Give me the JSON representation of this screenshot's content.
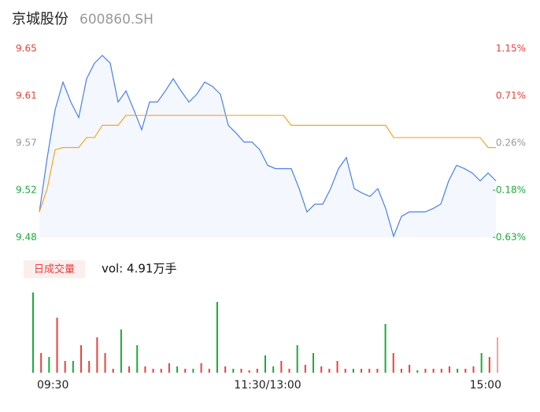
{
  "chart_data": {
    "type": "line",
    "title": "京城股份",
    "subtitle": "600860.SH",
    "xlim": [
      0,
      58
    ],
    "xticks": [
      {
        "value": 0,
        "label": "09:30"
      },
      {
        "value": 29,
        "label": "11:30/13:00"
      },
      {
        "value": 58,
        "label": "15:00"
      }
    ],
    "ylim": [
      9.48,
      9.65
    ],
    "yticks": [
      {
        "value": 9.65,
        "label": "9.65"
      },
      {
        "value": 9.6075,
        "label": "9.61"
      },
      {
        "value": 9.565,
        "label": "9.57"
      },
      {
        "value": 9.5225,
        "label": "9.52"
      },
      9.48
    ],
    "ytick_colors": [
      "#e8413b",
      "#e8413b",
      "#999999",
      "#1aaa3a",
      "#1aaa3a"
    ],
    "y2lim": [
      -0.63,
      1.15
    ],
    "y2ticks": [
      {
        "value": 1.15,
        "label": "1.15%"
      },
      {
        "value": 0.705,
        "label": "0.71%"
      },
      {
        "value": 0.26,
        "label": "0.26%"
      },
      {
        "value": -0.185,
        "label": "-0.18%"
      },
      {
        "value": -0.63,
        "label": "-0.63%"
      }
    ],
    "series": [
      {
        "color": "#4a80e8",
        "values": [
          9.503,
          9.552,
          9.595,
          9.62,
          9.602,
          9.588,
          9.623,
          9.637,
          9.644,
          9.637,
          9.602,
          9.612,
          9.595,
          9.577,
          9.602,
          9.602,
          9.612,
          9.623,
          9.612,
          9.602,
          9.609,
          9.62,
          9.616,
          9.609,
          9.581,
          9.574,
          9.566,
          9.566,
          9.559,
          9.545,
          9.542,
          9.542,
          9.542,
          9.524,
          9.503,
          9.51,
          9.51,
          9.524,
          9.542,
          9.552,
          9.524,
          9.52,
          9.517,
          9.524,
          9.506,
          9.481,
          9.499,
          9.503,
          9.503,
          9.503,
          9.506,
          9.51,
          9.531,
          9.545,
          9.542,
          9.538,
          9.531,
          9.538,
          9.531
        ]
      },
      {
        "color": "#f5a623",
        "values": [
          9.503,
          9.524,
          9.559,
          9.561,
          9.561,
          9.561,
          9.57,
          9.57,
          9.581,
          9.581,
          9.581,
          9.59,
          9.59,
          9.59,
          9.59,
          9.59,
          9.59,
          9.59,
          9.59,
          9.59,
          9.59,
          9.59,
          9.59,
          9.59,
          9.59,
          9.59,
          9.59,
          9.59,
          9.59,
          9.59,
          9.59,
          9.59,
          9.581,
          9.581,
          9.581,
          9.581,
          9.581,
          9.581,
          9.581,
          9.581,
          9.581,
          9.581,
          9.581,
          9.581,
          9.581,
          9.57,
          9.57,
          9.57,
          9.57,
          9.57,
          9.57,
          9.57,
          9.57,
          9.57,
          9.57,
          9.57,
          9.57,
          9.561,
          9.561
        ]
      }
    ],
    "volume": {
      "label": "日成交量",
      "text": "vol: 4.91万手",
      "ylim": [
        0,
        102
      ],
      "values": [
        102,
        25,
        20,
        70,
        15,
        15,
        35,
        15,
        45,
        25,
        5,
        55,
        8,
        35,
        8,
        5,
        5,
        12,
        8,
        5,
        5,
        12,
        5,
        90,
        8,
        5,
        5,
        3,
        5,
        22,
        8,
        15,
        5,
        35,
        10,
        25,
        8,
        5,
        15,
        5,
        5,
        5,
        5,
        5,
        62,
        25,
        5,
        10,
        3,
        5,
        5,
        5,
        8,
        5,
        5,
        8,
        25,
        20,
        45
      ],
      "colors": [
        "#1aaa3a",
        "#e8413b",
        "#1aaa3a",
        "#e8413b",
        "#e8413b",
        "#1aaa3a",
        "#e8413b",
        "#e8413b",
        "#e8413b",
        "#e8413b",
        "#e8413b",
        "#1aaa3a",
        "#e8413b",
        "#1aaa3a",
        "#e8413b",
        "#e8413b",
        "#e8413b",
        "#e8413b",
        "#1aaa3a",
        "#e8413b",
        "#1aaa3a",
        "#e8413b",
        "#e8413b",
        "#1aaa3a",
        "#e8413b",
        "#1aaa3a",
        "#e8413b",
        "#e8413b",
        "#e8413b",
        "#1aaa3a",
        "#1aaa3a",
        "#e8413b",
        "#e8413b",
        "#1aaa3a",
        "#e8413b",
        "#1aaa3a",
        "#e8413b",
        "#e8413b",
        "#e8413b",
        "#e8413b",
        "#1aaa3a",
        "#e8413b",
        "#e8413b",
        "#e8413b",
        "#1aaa3a",
        "#e8413b",
        "#e8413b",
        "#e8413b",
        "#1aaa3a",
        "#e8413b",
        "#e8413b",
        "#e8413b",
        "#e8413b",
        "#1aaa3a",
        "#e8413b",
        "#e8413b",
        "#1aaa3a",
        "#e8413b",
        "#f4a0a0"
      ]
    }
  }
}
